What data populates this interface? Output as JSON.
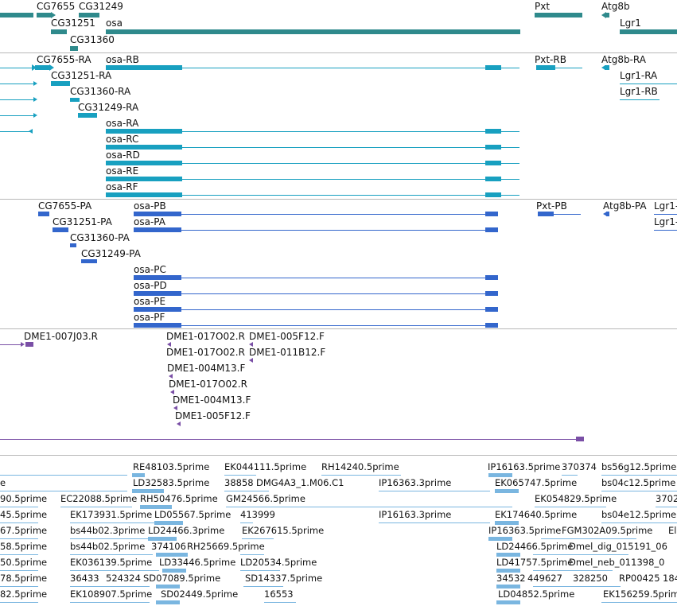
{
  "colors": {
    "gene": "#2f8a8c",
    "transcript": "#18a0c0",
    "protein": "#3366cc",
    "clone": "#7a4fa6",
    "est": "#7ab6e0"
  },
  "gene_track": {
    "labels": [
      "CG7655",
      "CG31249",
      "CG31251",
      "osa",
      "CG31360",
      "Pxt",
      "Atg8b",
      "Lgr1"
    ]
  },
  "transcript_track": {
    "labels": [
      "CG7655-RA",
      "osa-RB",
      "Pxt-RB",
      "Atg8b-RA",
      "CG31251-RA",
      "Lgr1-RA",
      "CG31360-RA",
      "Lgr1-RB",
      "CG31249-RA",
      "osa-RA",
      "osa-RC",
      "osa-RD",
      "osa-RE",
      "osa-RF"
    ]
  },
  "protein_track": {
    "labels": [
      "CG7655-PA",
      "osa-PB",
      "Pxt-PB",
      "Atg8b-PA",
      "Lgr1-",
      "CG31251-PA",
      "osa-PA",
      "Lgr1-",
      "CG31360-PA",
      "CG31249-PA",
      "osa-PC",
      "osa-PD",
      "osa-PE",
      "osa-PF"
    ]
  },
  "clone_track": {
    "labels": [
      "DME1-007J03.R",
      "DME1-017O02.R",
      "DME1-005F12.F",
      "DME1-017O02.R",
      "DME1-011B12.F",
      "DME1-004M13.F",
      "DME1-017O02.R",
      "DME1-004M13.F",
      "DME1-005F12.F"
    ]
  },
  "est_track": {
    "labels": [
      "RE48103.5prime",
      "EK044111.5prime",
      "RH14240.5prime",
      "IP16163.5prime",
      "370374",
      "bs56g12.5prime",
      "e",
      "LD32583.5prime",
      "38858",
      "DMG4A3_1.M06.C1",
      "IP16363.3prime",
      "EK065747.5prime",
      "bs04c12.5prime",
      "90.5prime",
      "EC22088.5prime",
      "RH50476.5prime",
      "GM24566.5prime",
      "EK054829.5prime",
      "3702",
      "45.5prime",
      "EK173931.5prime",
      "LD05567.5prime",
      "413999",
      "IP16163.3prime",
      "EK174640.5prime",
      "bs04e12.5prime",
      "67.5prime",
      "bs44b02.3prime",
      "LD24466.3prime",
      "EK267615.5prime",
      "IP16363.5prime",
      "FGM302A09.5prime",
      "El",
      "58.5prime",
      "bs44b02.5prime",
      "374106",
      "RH25669.5prime",
      "LD24466.5prime",
      "Dmel_dig_015191_06",
      "50.5prime",
      "EK036139.5prime",
      "LD33446.5prime",
      "LD20534.5prime",
      "LD41757.5prime",
      "Dmel_neb_011398_0",
      "78.5prime",
      "36433",
      "524324",
      "SD07089.5prime",
      "SD14337.5prime",
      "34532",
      "449627",
      "328250",
      "RP00425",
      "184",
      "82.5prime",
      "EK108907.5prime",
      "SD02449.5prime",
      "16553",
      "LD04852.5prime",
      "EK156259.5prime"
    ]
  }
}
